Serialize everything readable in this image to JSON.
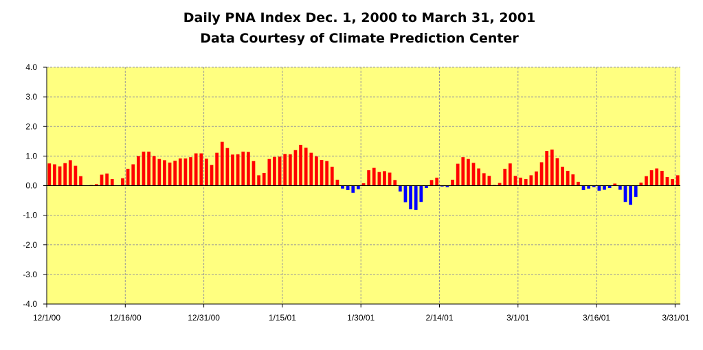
{
  "colors": {
    "plot_background": "#ffff80",
    "positive_bar": "#ff0000",
    "negative_bar": "#0000ff",
    "gridline": "#999999",
    "axis": "#000000"
  },
  "chart_data": {
    "type": "bar",
    "title": "Daily PNA Index Dec. 1, 2000 to March 31, 2001",
    "subtitle": "Data Courtesy of Climate Prediction Center",
    "xlabel": "",
    "ylabel": "",
    "ylim": [
      -4.0,
      4.0
    ],
    "y_ticks": [
      "4.0",
      "3.0",
      "2.0",
      "1.0",
      "0.0",
      "-1.0",
      "-2.0",
      "-3.0",
      "-4.0"
    ],
    "x_tick_labels": [
      "12/1/00",
      "12/16/00",
      "12/31/00",
      "1/15/01",
      "1/30/01",
      "2/14/01",
      "3/1/01",
      "3/16/01",
      "3/31/01"
    ],
    "x_tick_interval_days": 15,
    "grid": true,
    "legend": "none",
    "series": [
      {
        "name": "Daily PNA Index",
        "start_date": "12/1/00",
        "values": [
          0.75,
          0.72,
          0.65,
          0.76,
          0.86,
          0.67,
          0.32,
          0.0,
          0.02,
          0.05,
          0.37,
          0.41,
          0.22,
          0.0,
          0.25,
          0.57,
          0.72,
          1.0,
          1.15,
          1.15,
          1.0,
          0.9,
          0.86,
          0.78,
          0.84,
          0.92,
          0.92,
          0.96,
          1.09,
          1.09,
          0.91,
          0.7,
          1.11,
          1.48,
          1.27,
          1.05,
          1.06,
          1.15,
          1.14,
          0.83,
          0.35,
          0.43,
          0.9,
          0.97,
          0.98,
          1.07,
          1.06,
          1.2,
          1.38,
          1.28,
          1.11,
          0.99,
          0.87,
          0.83,
          0.64,
          0.2,
          -0.1,
          -0.15,
          -0.24,
          -0.12,
          0.08,
          0.52,
          0.6,
          0.46,
          0.49,
          0.44,
          0.19,
          -0.2,
          -0.56,
          -0.8,
          -0.82,
          -0.55,
          -0.08,
          0.19,
          0.27,
          -0.03,
          -0.05,
          0.2,
          0.74,
          0.96,
          0.9,
          0.77,
          0.58,
          0.42,
          0.33,
          0.02,
          0.09,
          0.57,
          0.75,
          0.33,
          0.27,
          0.22,
          0.35,
          0.48,
          0.79,
          1.17,
          1.22,
          0.93,
          0.64,
          0.5,
          0.38,
          0.13,
          -0.15,
          -0.1,
          -0.05,
          -0.17,
          -0.14,
          -0.08,
          0.07,
          -0.14,
          -0.55,
          -0.65,
          -0.38,
          0.1,
          0.32,
          0.52,
          0.58,
          0.5,
          0.29,
          0.22,
          0.35
        ]
      }
    ]
  }
}
